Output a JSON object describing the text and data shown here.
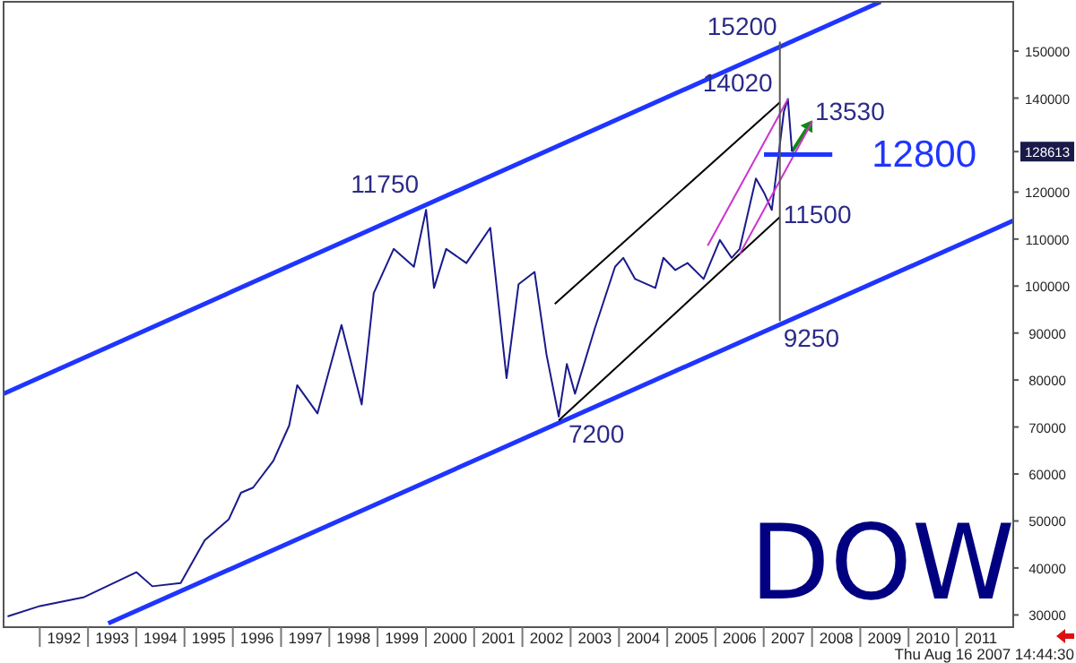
{
  "chart_data": {
    "type": "line",
    "annotations": [
      {
        "text": "11750",
        "x": "2000-01",
        "y": 117500
      },
      {
        "text": "15200",
        "x": "2007-05",
        "y": 152000
      },
      {
        "text": "14020",
        "x": "2007-07",
        "y": 140200
      },
      {
        "text": "13530",
        "x": "2008-01",
        "y": 135300
      },
      {
        "text": "12800",
        "x": "2008-06",
        "y": 128000
      },
      {
        "text": "11500",
        "x": "2007-05",
        "y": 115000
      },
      {
        "text": "9250",
        "x": "2007-05",
        "y": 92500
      },
      {
        "text": "7200",
        "x": "2002-10",
        "y": 72000
      },
      "DOW",
      "Thu Aug 16 2007 14:44:30"
    ],
    "xlim": [
      "1991-04",
      "2012-03"
    ],
    "xticks": [
      {
        "value": "1992-07",
        "label": "1992"
      },
      {
        "value": "1993-07",
        "label": "1993"
      },
      {
        "value": "1994-07",
        "label": "1994"
      },
      {
        "value": "1995-07",
        "label": "1995"
      },
      {
        "value": "1996-07",
        "label": "1996"
      },
      {
        "value": "1997-07",
        "label": "1997"
      },
      {
        "value": "1998-07",
        "label": "1998"
      },
      {
        "value": "1999-07",
        "label": "1999"
      },
      {
        "value": "2000-07",
        "label": "2000"
      },
      {
        "value": "2001-07",
        "label": "2001"
      },
      {
        "value": "2002-07",
        "label": "2002"
      },
      {
        "value": "2003-07",
        "label": "2003"
      },
      {
        "value": "2004-07",
        "label": "2004"
      },
      {
        "value": "2005-07",
        "label": "2005"
      },
      {
        "value": "2006-07",
        "label": "2006"
      },
      {
        "value": "2007-07",
        "label": "2007"
      },
      {
        "value": "2008-07",
        "label": "2008"
      },
      {
        "value": "2009-07",
        "label": "2009"
      },
      {
        "value": "2010-07",
        "label": "2010"
      },
      {
        "value": "2011-07",
        "label": "2011"
      }
    ],
    "ylim": [
      27400,
      160500
    ],
    "yticks": [
      30000,
      40000,
      50000,
      60000,
      70000,
      80000,
      90000,
      100000,
      110000,
      120000,
      128613,
      140000,
      150000
    ],
    "grid": false,
    "marker": "none",
    "line_style": "solid",
    "series": [
      {
        "color": "#1a1a8c",
        "x": [
          "1991-05",
          "1992-01",
          "1992-12",
          "1994-01",
          "1994-05",
          "1994-12",
          "1995-06",
          "1995-12",
          "1996-03",
          "1996-06",
          "1996-11",
          "1997-03",
          "1997-05",
          "1997-10",
          "1998-04",
          "1998-09",
          "1998-12",
          "1999-05",
          "1999-10",
          "2000-01",
          "2000-03",
          "2000-06",
          "2000-11",
          "2001-05",
          "2001-09",
          "2001-12",
          "2002-04",
          "2002-07",
          "2002-10",
          "2002-12",
          "2003-02",
          "2003-07",
          "2003-12",
          "2004-02",
          "2004-05",
          "2004-10",
          "2004-12",
          "2005-03",
          "2005-06",
          "2005-10",
          "2006-02",
          "2006-05",
          "2006-07",
          "2006-11",
          "2007-01",
          "2007-03",
          "2007-06",
          "2007-07",
          "2007-08"
        ],
        "values": [
          29700,
          31900,
          33800,
          39100,
          36100,
          36800,
          45900,
          50400,
          56000,
          57100,
          62800,
          70300,
          78900,
          72900,
          91700,
          74800,
          98500,
          107900,
          104100,
          116200,
          99600,
          107900,
          104900,
          112400,
          80400,
          100400,
          103000,
          85300,
          72200,
          83400,
          77100,
          91000,
          104100,
          106000,
          101500,
          99600,
          106000,
          103400,
          104900,
          101500,
          109800,
          106000,
          107900,
          122900,
          119900,
          116200,
          137200,
          139800,
          128600
        ]
      },
      {
        "color": "#1f35ff",
        "x": [
          "1991-04",
          "2009-06"
        ],
        "values": [
          77100,
          160500
        ]
      },
      {
        "color": "#1f35ff",
        "x": [
          "1993-06",
          "2012-03"
        ],
        "values": [
          28200,
          113900
        ]
      },
      {
        "color": "#000000",
        "x": [
          "2002-09",
          "2007-05"
        ],
        "values": [
          96200,
          139100
        ]
      },
      {
        "color": "#000000",
        "x": [
          "2002-10",
          "2007-05"
        ],
        "values": [
          71400,
          114700
        ]
      },
      {
        "color": "#cc33cc",
        "x": [
          "2005-11",
          "2007-07"
        ],
        "values": [
          108600,
          139800
        ]
      },
      {
        "color": "#cc33cc",
        "x": [
          "2006-07",
          "2008-01"
        ],
        "values": [
          106800,
          135000
        ]
      },
      {
        "color": "#1f35ff",
        "x": [
          "2007-01",
          "2008-06"
        ],
        "values": [
          128000,
          128000
        ]
      },
      {
        "color": "#555555",
        "x": [
          "2007-05",
          "2007-05"
        ],
        "values": [
          152000,
          92500
        ]
      }
    ]
  }
}
